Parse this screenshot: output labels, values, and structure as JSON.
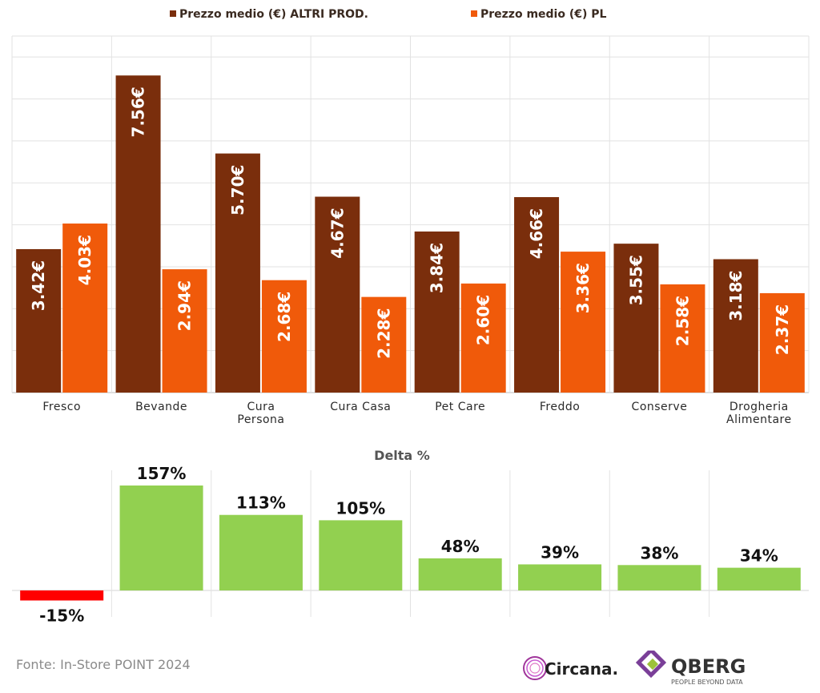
{
  "chart_data": [
    {
      "type": "bar",
      "categories": [
        "Fresco",
        "Bevande",
        "Cura Persona",
        "Cura Casa",
        "Pet Care",
        "Freddo",
        "Conserve",
        "Drogheria Alimentare"
      ],
      "category_lines": [
        [
          "Fresco"
        ],
        [
          "Bevande"
        ],
        [
          "Cura",
          "Persona"
        ],
        [
          "Cura Casa"
        ],
        [
          "Pet Care"
        ],
        [
          "Freddo"
        ],
        [
          "Conserve"
        ],
        [
          "Drogheria",
          "Alimentare"
        ]
      ],
      "series": [
        {
          "name": "Prezzo medio (€) ALTRI PROD.",
          "color": "#7a2e0c",
          "values": [
            3.42,
            7.56,
            5.7,
            4.67,
            3.84,
            4.66,
            3.55,
            3.18
          ],
          "labels": [
            "3.42€",
            "7.56€",
            "5.70€",
            "4.67€",
            "3.84€",
            "4.66€",
            "3.55€",
            "3.18€"
          ]
        },
        {
          "name": "Prezzo medio (€) PL",
          "color": "#f05a0a",
          "values": [
            4.03,
            2.94,
            2.68,
            2.28,
            2.6,
            3.36,
            2.58,
            2.37
          ],
          "labels": [
            "4.03€",
            "2.94€",
            "2.68€",
            "2.28€",
            "2.60€",
            "3.36€",
            "2.58€",
            "2.37€"
          ]
        }
      ],
      "ylim": [
        0,
        8.5
      ],
      "grid": true,
      "legend": "top",
      "title": "",
      "xlabel": "",
      "ylabel": ""
    },
    {
      "type": "bar",
      "title": "Delta %",
      "categories": [
        "Fresco",
        "Bevande",
        "Cura Persona",
        "Cura Casa",
        "Pet Care",
        "Freddo",
        "Conserve",
        "Drogheria Alimentare"
      ],
      "values": [
        -15,
        157,
        113,
        105,
        48,
        39,
        38,
        34
      ],
      "labels": [
        "-15%",
        "157%",
        "113%",
        "105%",
        "48%",
        "39%",
        "38%",
        "34%"
      ],
      "positive_color": "#92d050",
      "negative_color": "#ff0000",
      "ylim": [
        -40,
        180
      ],
      "grid": true
    }
  ],
  "footer": {
    "source": "Fonte: In-Store POINT 2024",
    "logo_circana": "Circana.",
    "logo_qberg": "QBERG",
    "logo_qberg_tagline": "PEOPLE BEYOND DATA"
  }
}
